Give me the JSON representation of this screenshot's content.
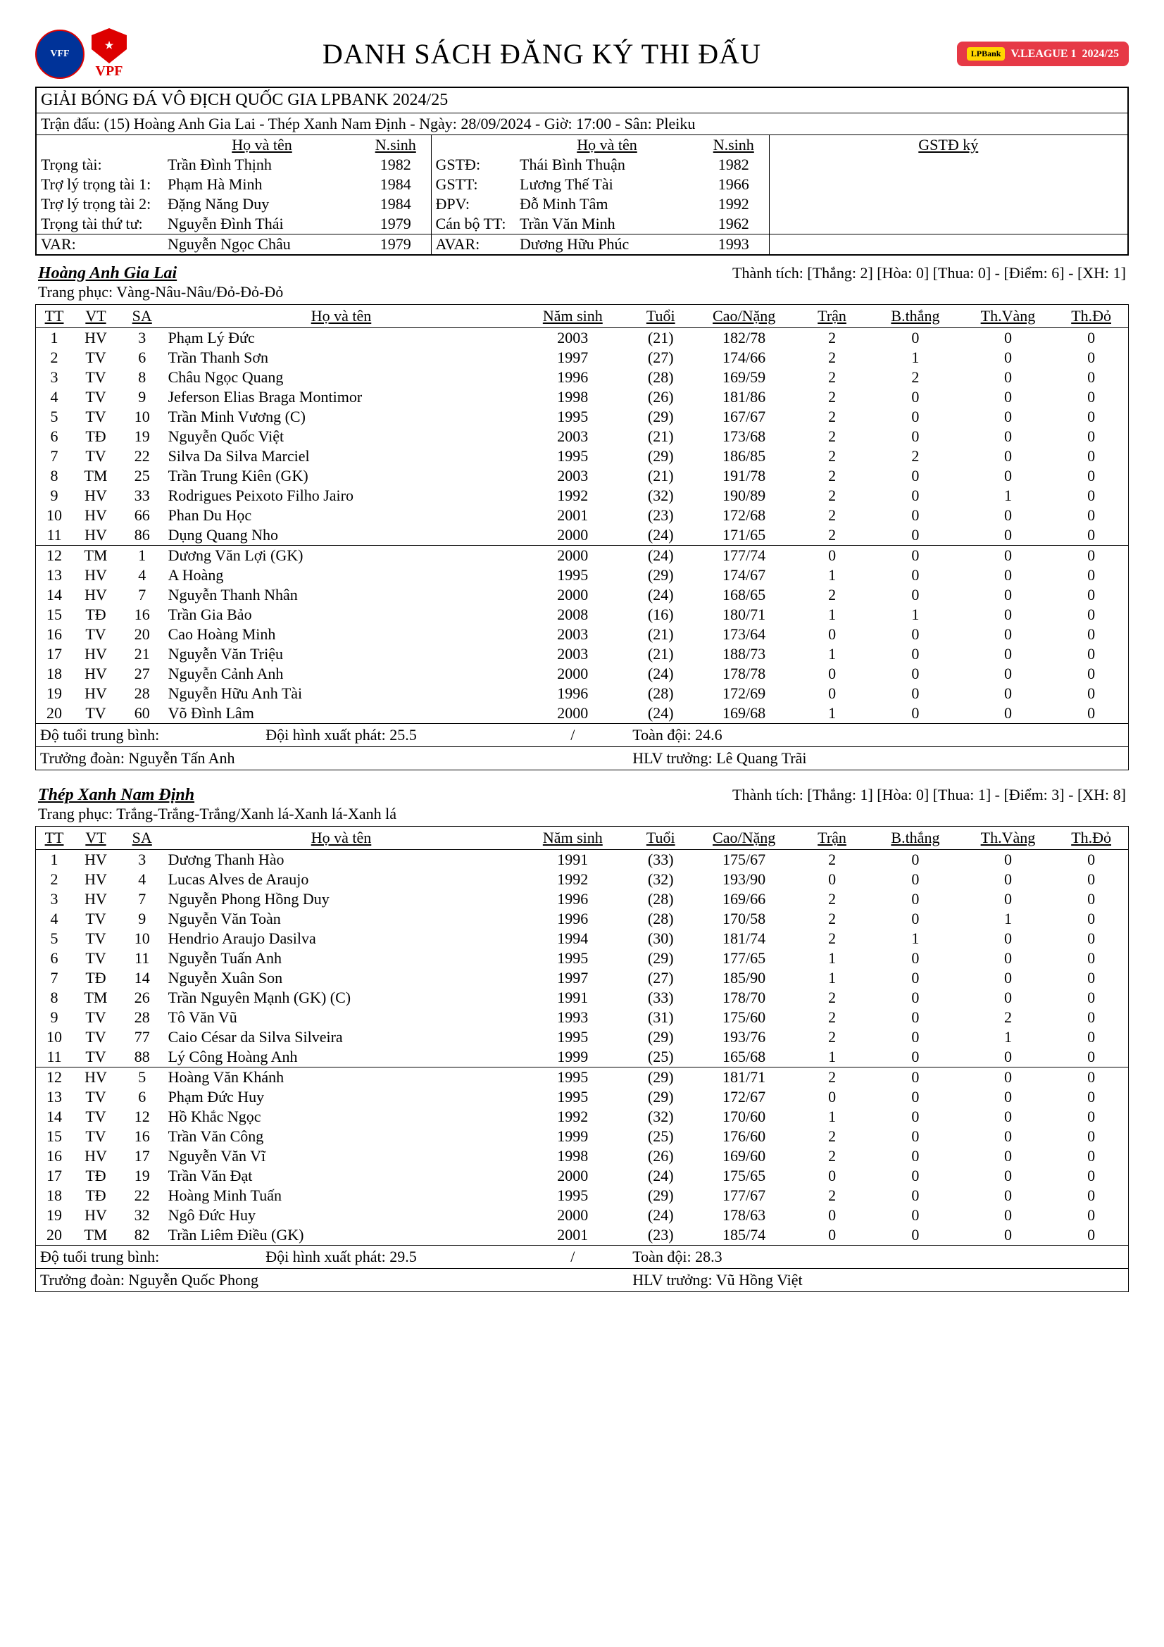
{
  "header": {
    "title": "DANH SÁCH ĐĂNG KÝ THI ĐẤU",
    "logo_vff": "VFF",
    "logo_vpf": "VPF",
    "league_badge": "LPBank",
    "league_name": "V.LEAGUE 1",
    "league_season": "2024/25"
  },
  "tournament": "GIẢI BÓNG ĐÁ VÔ ĐỊCH QUỐC GIA LPBANK 2024/25",
  "match": "Trận đấu: (15) Hoàng Anh Gia Lai - Thép Xanh Nam Định - Ngày: 28/09/2024 - Giờ: 17:00 - Sân: Pleiku",
  "ref_headers": {
    "name": "Họ và tên",
    "year": "N.sinh",
    "sign": "GSTĐ ký"
  },
  "refs": {
    "left": [
      {
        "role": "Trọng tài:",
        "name": "Trần Đình Thịnh",
        "year": "1982"
      },
      {
        "role": "Trợ lý trọng tài 1:",
        "name": "Phạm Hà Minh",
        "year": "1984"
      },
      {
        "role": "Trợ lý trọng tài 2:",
        "name": "Đặng Năng Duy",
        "year": "1984"
      },
      {
        "role": "Trọng tài thứ tư:",
        "name": "Nguyễn Đình Thái",
        "year": "1979"
      }
    ],
    "right": [
      {
        "role": "GSTĐ:",
        "name": "Thái Bình Thuận",
        "year": "1982"
      },
      {
        "role": "GSTT:",
        "name": "Lương Thế Tài",
        "year": "1966"
      },
      {
        "role": "ĐPV:",
        "name": "Đỗ Minh Tâm",
        "year": "1992"
      },
      {
        "role": "Cán bộ TT:",
        "name": "Trần Văn Minh",
        "year": "1962"
      }
    ],
    "var": {
      "role": "VAR:",
      "name": "Nguyễn Ngọc Châu",
      "year": "1979"
    },
    "avar": {
      "role": "AVAR:",
      "name": "Dương Hữu Phúc",
      "year": "1993"
    }
  },
  "player_headers": {
    "tt": "TT",
    "vt": "VT",
    "sa": "SA",
    "name": "Họ và tên",
    "ns": "Năm sinh",
    "tuoi": "Tuổi",
    "cn": "Cao/Nặng",
    "tran": "Trận",
    "bt": "B.thắng",
    "tv": "Th.Vàng",
    "td": "Th.Đỏ"
  },
  "teams": [
    {
      "name": "Hoàng Anh Gia Lai",
      "record": "Thành tích: [Thắng: 2] [Hòa: 0] [Thua: 0] - [Điểm: 6] - [XH: 1]",
      "kit": "Trang phục: Vàng-Nâu-Nâu/Đỏ-Đỏ-Đỏ",
      "starters": [
        {
          "tt": "1",
          "vt": "HV",
          "sa": "3",
          "name": "Phạm Lý Đức",
          "ns": "2003",
          "tuoi": "(21)",
          "cn": "182/78",
          "tran": "2",
          "bt": "0",
          "tv": "0",
          "td": "0"
        },
        {
          "tt": "2",
          "vt": "TV",
          "sa": "6",
          "name": "Trần Thanh Sơn",
          "ns": "1997",
          "tuoi": "(27)",
          "cn": "174/66",
          "tran": "2",
          "bt": "1",
          "tv": "0",
          "td": "0"
        },
        {
          "tt": "3",
          "vt": "TV",
          "sa": "8",
          "name": "Châu Ngọc Quang",
          "ns": "1996",
          "tuoi": "(28)",
          "cn": "169/59",
          "tran": "2",
          "bt": "2",
          "tv": "0",
          "td": "0"
        },
        {
          "tt": "4",
          "vt": "TV",
          "sa": "9",
          "name": "Jeferson Elias Braga Montimor",
          "ns": "1998",
          "tuoi": "(26)",
          "cn": "181/86",
          "tran": "2",
          "bt": "0",
          "tv": "0",
          "td": "0"
        },
        {
          "tt": "5",
          "vt": "TV",
          "sa": "10",
          "name": "Trần Minh Vương (C)",
          "ns": "1995",
          "tuoi": "(29)",
          "cn": "167/67",
          "tran": "2",
          "bt": "0",
          "tv": "0",
          "td": "0"
        },
        {
          "tt": "6",
          "vt": "TĐ",
          "sa": "19",
          "name": "Nguyễn Quốc Việt",
          "ns": "2003",
          "tuoi": "(21)",
          "cn": "173/68",
          "tran": "2",
          "bt": "0",
          "tv": "0",
          "td": "0"
        },
        {
          "tt": "7",
          "vt": "TV",
          "sa": "22",
          "name": "Silva Da Silva Marciel",
          "ns": "1995",
          "tuoi": "(29)",
          "cn": "186/85",
          "tran": "2",
          "bt": "2",
          "tv": "0",
          "td": "0"
        },
        {
          "tt": "8",
          "vt": "TM",
          "sa": "25",
          "name": "Trần Trung Kiên (GK)",
          "ns": "2003",
          "tuoi": "(21)",
          "cn": "191/78",
          "tran": "2",
          "bt": "0",
          "tv": "0",
          "td": "0"
        },
        {
          "tt": "9",
          "vt": "HV",
          "sa": "33",
          "name": "Rodrigues Peixoto Filho Jairo",
          "ns": "1992",
          "tuoi": "(32)",
          "cn": "190/89",
          "tran": "2",
          "bt": "0",
          "tv": "1",
          "td": "0"
        },
        {
          "tt": "10",
          "vt": "HV",
          "sa": "66",
          "name": "Phan Du Học",
          "ns": "2001",
          "tuoi": "(23)",
          "cn": "172/68",
          "tran": "2",
          "bt": "0",
          "tv": "0",
          "td": "0"
        },
        {
          "tt": "11",
          "vt": "HV",
          "sa": "86",
          "name": "Dụng Quang Nho",
          "ns": "2000",
          "tuoi": "(24)",
          "cn": "171/65",
          "tran": "2",
          "bt": "0",
          "tv": "0",
          "td": "0"
        }
      ],
      "subs": [
        {
          "tt": "12",
          "vt": "TM",
          "sa": "1",
          "name": "Dương Văn Lợi (GK)",
          "ns": "2000",
          "tuoi": "(24)",
          "cn": "177/74",
          "tran": "0",
          "bt": "0",
          "tv": "0",
          "td": "0"
        },
        {
          "tt": "13",
          "vt": "HV",
          "sa": "4",
          "name": "A Hoàng",
          "ns": "1995",
          "tuoi": "(29)",
          "cn": "174/67",
          "tran": "1",
          "bt": "0",
          "tv": "0",
          "td": "0"
        },
        {
          "tt": "14",
          "vt": "HV",
          "sa": "7",
          "name": "Nguyễn Thanh Nhân",
          "ns": "2000",
          "tuoi": "(24)",
          "cn": "168/65",
          "tran": "2",
          "bt": "0",
          "tv": "0",
          "td": "0"
        },
        {
          "tt": "15",
          "vt": "TĐ",
          "sa": "16",
          "name": "Trần Gia Bảo",
          "ns": "2008",
          "tuoi": "(16)",
          "cn": "180/71",
          "tran": "1",
          "bt": "1",
          "tv": "0",
          "td": "0"
        },
        {
          "tt": "16",
          "vt": "TV",
          "sa": "20",
          "name": "Cao Hoàng Minh",
          "ns": "2003",
          "tuoi": "(21)",
          "cn": "173/64",
          "tran": "0",
          "bt": "0",
          "tv": "0",
          "td": "0"
        },
        {
          "tt": "17",
          "vt": "HV",
          "sa": "21",
          "name": "Nguyễn Văn Triệu",
          "ns": "2003",
          "tuoi": "(21)",
          "cn": "188/73",
          "tran": "1",
          "bt": "0",
          "tv": "0",
          "td": "0"
        },
        {
          "tt": "18",
          "vt": "HV",
          "sa": "27",
          "name": "Nguyễn Cảnh Anh",
          "ns": "2000",
          "tuoi": "(24)",
          "cn": "178/78",
          "tran": "0",
          "bt": "0",
          "tv": "0",
          "td": "0"
        },
        {
          "tt": "19",
          "vt": "HV",
          "sa": "28",
          "name": "Nguyễn Hữu Anh Tài",
          "ns": "1996",
          "tuoi": "(28)",
          "cn": "172/69",
          "tran": "0",
          "bt": "0",
          "tv": "0",
          "td": "0"
        },
        {
          "tt": "20",
          "vt": "TV",
          "sa": "60",
          "name": "Võ Đình Lâm",
          "ns": "2000",
          "tuoi": "(24)",
          "cn": "169/68",
          "tran": "1",
          "bt": "0",
          "tv": "0",
          "td": "0"
        }
      ],
      "age_label": "Độ tuổi trung bình:",
      "start_age": "Đội hình xuất phát: 25.5",
      "slash": "/",
      "full_age": "Toàn đội: 24.6",
      "manager": "Trưởng đoàn: Nguyễn Tấn Anh",
      "coach": "HLV trưởng: Lê Quang Trãi"
    },
    {
      "name": "Thép Xanh Nam Định",
      "record": "Thành tích: [Thắng: 1] [Hòa: 0] [Thua: 1] - [Điểm: 3] - [XH: 8]",
      "kit": "Trang phục: Trắng-Trắng-Trắng/Xanh lá-Xanh lá-Xanh lá",
      "starters": [
        {
          "tt": "1",
          "vt": "HV",
          "sa": "3",
          "name": "Dương Thanh Hào",
          "ns": "1991",
          "tuoi": "(33)",
          "cn": "175/67",
          "tran": "2",
          "bt": "0",
          "tv": "0",
          "td": "0"
        },
        {
          "tt": "2",
          "vt": "HV",
          "sa": "4",
          "name": "Lucas Alves de Araujo",
          "ns": "1992",
          "tuoi": "(32)",
          "cn": "193/90",
          "tran": "0",
          "bt": "0",
          "tv": "0",
          "td": "0"
        },
        {
          "tt": "3",
          "vt": "HV",
          "sa": "7",
          "name": "Nguyễn Phong Hồng Duy",
          "ns": "1996",
          "tuoi": "(28)",
          "cn": "169/66",
          "tran": "2",
          "bt": "0",
          "tv": "0",
          "td": "0"
        },
        {
          "tt": "4",
          "vt": "TV",
          "sa": "9",
          "name": "Nguyễn Văn Toàn",
          "ns": "1996",
          "tuoi": "(28)",
          "cn": "170/58",
          "tran": "2",
          "bt": "0",
          "tv": "1",
          "td": "0"
        },
        {
          "tt": "5",
          "vt": "TV",
          "sa": "10",
          "name": "Hendrio Araujo Dasilva",
          "ns": "1994",
          "tuoi": "(30)",
          "cn": "181/74",
          "tran": "2",
          "bt": "1",
          "tv": "0",
          "td": "0"
        },
        {
          "tt": "6",
          "vt": "TV",
          "sa": "11",
          "name": "Nguyễn Tuấn Anh",
          "ns": "1995",
          "tuoi": "(29)",
          "cn": "177/65",
          "tran": "1",
          "bt": "0",
          "tv": "0",
          "td": "0"
        },
        {
          "tt": "7",
          "vt": "TĐ",
          "sa": "14",
          "name": "Nguyễn Xuân Son",
          "ns": "1997",
          "tuoi": "(27)",
          "cn": "185/90",
          "tran": "1",
          "bt": "0",
          "tv": "0",
          "td": "0"
        },
        {
          "tt": "8",
          "vt": "TM",
          "sa": "26",
          "name": "Trần Nguyên Mạnh (GK) (C)",
          "ns": "1991",
          "tuoi": "(33)",
          "cn": "178/70",
          "tran": "2",
          "bt": "0",
          "tv": "0",
          "td": "0"
        },
        {
          "tt": "9",
          "vt": "TV",
          "sa": "28",
          "name": "Tô Văn Vũ",
          "ns": "1993",
          "tuoi": "(31)",
          "cn": "175/60",
          "tran": "2",
          "bt": "0",
          "tv": "2",
          "td": "0"
        },
        {
          "tt": "10",
          "vt": "TV",
          "sa": "77",
          "name": "Caio César da Silva Silveira",
          "ns": "1995",
          "tuoi": "(29)",
          "cn": "193/76",
          "tran": "2",
          "bt": "0",
          "tv": "1",
          "td": "0"
        },
        {
          "tt": "11",
          "vt": "TV",
          "sa": "88",
          "name": "Lý Công Hoàng Anh",
          "ns": "1999",
          "tuoi": "(25)",
          "cn": "165/68",
          "tran": "1",
          "bt": "0",
          "tv": "0",
          "td": "0"
        }
      ],
      "subs": [
        {
          "tt": "12",
          "vt": "HV",
          "sa": "5",
          "name": "Hoàng Văn Khánh",
          "ns": "1995",
          "tuoi": "(29)",
          "cn": "181/71",
          "tran": "2",
          "bt": "0",
          "tv": "0",
          "td": "0"
        },
        {
          "tt": "13",
          "vt": "TV",
          "sa": "6",
          "name": "Phạm Đức Huy",
          "ns": "1995",
          "tuoi": "(29)",
          "cn": "172/67",
          "tran": "0",
          "bt": "0",
          "tv": "0",
          "td": "0"
        },
        {
          "tt": "14",
          "vt": "TV",
          "sa": "12",
          "name": "Hồ Khắc Ngọc",
          "ns": "1992",
          "tuoi": "(32)",
          "cn": "170/60",
          "tran": "1",
          "bt": "0",
          "tv": "0",
          "td": "0"
        },
        {
          "tt": "15",
          "vt": "TV",
          "sa": "16",
          "name": "Trần Văn Công",
          "ns": "1999",
          "tuoi": "(25)",
          "cn": "176/60",
          "tran": "2",
          "bt": "0",
          "tv": "0",
          "td": "0"
        },
        {
          "tt": "16",
          "vt": "HV",
          "sa": "17",
          "name": "Nguyễn Văn Vĩ",
          "ns": "1998",
          "tuoi": "(26)",
          "cn": "169/60",
          "tran": "2",
          "bt": "0",
          "tv": "0",
          "td": "0"
        },
        {
          "tt": "17",
          "vt": "TĐ",
          "sa": "19",
          "name": "Trần Văn Đạt",
          "ns": "2000",
          "tuoi": "(24)",
          "cn": "175/65",
          "tran": "0",
          "bt": "0",
          "tv": "0",
          "td": "0"
        },
        {
          "tt": "18",
          "vt": "TĐ",
          "sa": "22",
          "name": "Hoàng Minh Tuấn",
          "ns": "1995",
          "tuoi": "(29)",
          "cn": "177/67",
          "tran": "2",
          "bt": "0",
          "tv": "0",
          "td": "0"
        },
        {
          "tt": "19",
          "vt": "HV",
          "sa": "32",
          "name": "Ngô Đức Huy",
          "ns": "2000",
          "tuoi": "(24)",
          "cn": "178/63",
          "tran": "0",
          "bt": "0",
          "tv": "0",
          "td": "0"
        },
        {
          "tt": "20",
          "vt": "TM",
          "sa": "82",
          "name": "Trần Liêm Điều (GK)",
          "ns": "2001",
          "tuoi": "(23)",
          "cn": "185/74",
          "tran": "0",
          "bt": "0",
          "tv": "0",
          "td": "0"
        }
      ],
      "age_label": "Độ tuổi trung bình:",
      "start_age": "Đội hình xuất phát: 29.5",
      "slash": "/",
      "full_age": "Toàn đội: 28.3",
      "manager": "Trưởng đoàn: Nguyễn Quốc Phong",
      "coach": "HLV trưởng: Vũ Hồng Việt"
    }
  ]
}
